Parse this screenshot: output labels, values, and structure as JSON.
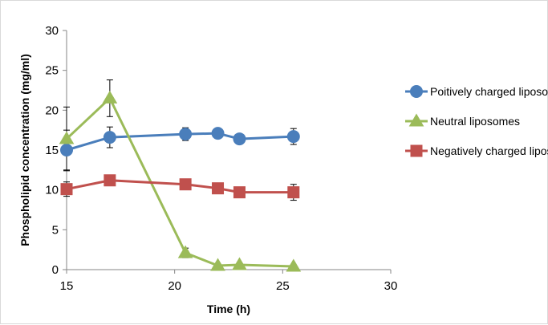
{
  "chart_data": {
    "type": "line",
    "title": "",
    "xlabel": "Time (h)",
    "ylabel": "Phospholipid concentration (mg/ml)",
    "xlim": [
      15,
      30
    ],
    "ylim": [
      0,
      30
    ],
    "xticks": [
      15,
      20,
      25,
      30
    ],
    "yticks": [
      0,
      5,
      10,
      15,
      20,
      25,
      30
    ],
    "grid": false,
    "legend_position": "right",
    "series": [
      {
        "name": "Poitively charged liposomes",
        "color": "#4a7ebb",
        "marker": "circle",
        "x": [
          15,
          17,
          20.5,
          22,
          23,
          25.5
        ],
        "y": [
          15.0,
          16.6,
          17.0,
          17.1,
          16.4,
          16.7
        ],
        "err": [
          2.5,
          1.3,
          0.8,
          0.3,
          0.4,
          1.0
        ]
      },
      {
        "name": "Neutral liposomes",
        "color": "#9bbb59",
        "marker": "triangle",
        "x": [
          15,
          17,
          20.5,
          22,
          23,
          25.5
        ],
        "y": [
          16.4,
          21.5,
          2.1,
          0.5,
          0.6,
          0.4
        ],
        "err": [
          4.0,
          2.3,
          0.6,
          0.2,
          0.2,
          0.2
        ]
      },
      {
        "name": "Negatively charged liposomes",
        "color": "#c0504d",
        "marker": "square",
        "x": [
          15,
          17,
          20.5,
          22,
          23,
          25.5
        ],
        "y": [
          10.1,
          11.2,
          10.7,
          10.2,
          9.7,
          9.7
        ],
        "err": [
          0.9,
          0.4,
          0.4,
          0.3,
          0.3,
          1.0
        ]
      }
    ]
  }
}
